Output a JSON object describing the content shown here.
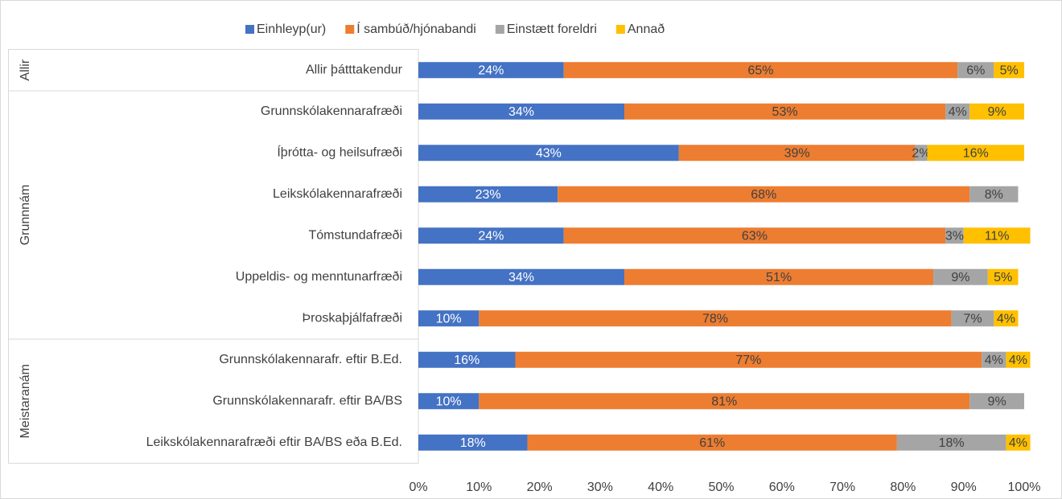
{
  "chart_data": {
    "type": "stacked-barh",
    "groups": [
      {
        "name": "Allir",
        "categories": [
          "Allir þátttakendur"
        ]
      },
      {
        "name": "Grunnnám",
        "categories": [
          "Grunnskólakennarafræði",
          "Íþrótta- og heilsufræði",
          "Leikskólakennarafræði",
          "Tómstundafræði",
          "Uppeldis- og menntunarfræði",
          "Þroskaþjálfafræði"
        ]
      },
      {
        "name": "Meistaranám",
        "categories": [
          "Grunnskólakennarafr. eftir B.Ed.",
          "Grunnskólakennarafr. eftir BA/BS",
          "Leikskólakennarafræði eftir BA/BS eða B.Ed."
        ]
      }
    ],
    "series": [
      {
        "name": "Einhleyp(ur)",
        "color": "#4472c4",
        "values": [
          24,
          34,
          43,
          23,
          24,
          34,
          10,
          16,
          10,
          18
        ],
        "value_labels": [
          "24%",
          "34%",
          "43%",
          "23%",
          "24%",
          "34%",
          "10%",
          "16%",
          "10%",
          "18%"
        ]
      },
      {
        "name": "Í sambúð/hjónabandi",
        "color": "#ed7d31",
        "values": [
          65,
          53,
          39,
          68,
          63,
          51,
          78,
          77,
          81,
          61
        ],
        "value_labels": [
          "65%",
          "53%",
          "39%",
          "68%",
          "63%",
          "51%",
          "78%",
          "77%",
          "81%",
          "61%"
        ]
      },
      {
        "name": "Einstætt foreldri",
        "color": "#a5a5a5",
        "values": [
          6,
          4,
          2,
          8,
          3,
          9,
          7,
          4,
          9,
          18
        ],
        "value_labels": [
          "6%",
          "4%",
          "2%",
          "8%",
          "3%",
          "9%",
          "7%",
          "4%",
          "9%",
          "18%"
        ]
      },
      {
        "name": "Annað",
        "color": "#ffc000",
        "values": [
          5,
          9,
          16,
          null,
          11,
          5,
          4,
          4,
          null,
          4
        ],
        "value_labels": [
          "5%",
          "9%",
          "16%",
          null,
          "11%",
          "5%",
          "4%",
          "4%",
          null,
          "4%"
        ]
      }
    ],
    "xlim": [
      0,
      100
    ],
    "xticks": [
      {
        "value": 0,
        "label": "0%"
      },
      {
        "value": 10,
        "label": "10%"
      },
      {
        "value": 20,
        "label": "20%"
      },
      {
        "value": 30,
        "label": "30%"
      },
      {
        "value": 40,
        "label": "40%"
      },
      {
        "value": 50,
        "label": "50%"
      },
      {
        "value": 60,
        "label": "60%"
      },
      {
        "value": 70,
        "label": "70%"
      },
      {
        "value": 80,
        "label": "80%"
      },
      {
        "value": 90,
        "label": "90%"
      },
      {
        "value": 100,
        "label": "100%"
      }
    ],
    "legend": "top"
  }
}
